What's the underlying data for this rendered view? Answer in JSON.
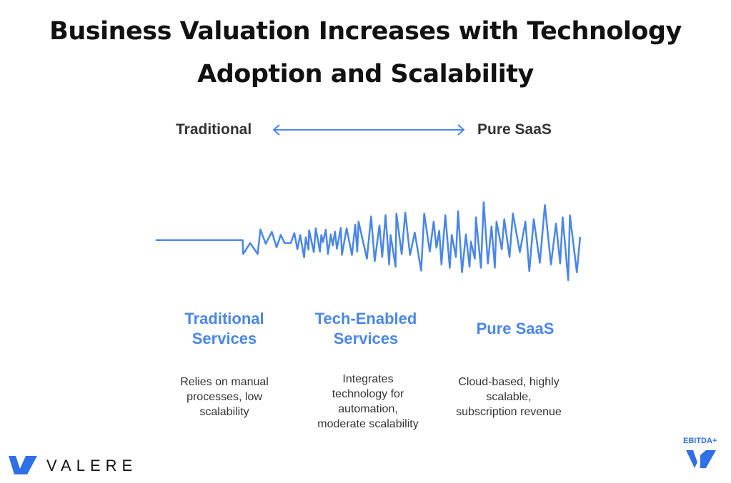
{
  "title_line1": "Business Valuation Increases with Technology",
  "title_line2": "Adoption and Scalability",
  "spectrum": {
    "left": "Traditional",
    "right": "Pure SaaS",
    "arrow_icon": "double-arrow-icon"
  },
  "accent_color": "#4a86e8",
  "categories": [
    {
      "name_line1": "Traditional",
      "name_line2": "Services",
      "desc": [
        "Relies on manual",
        "processes, low",
        "scalability"
      ]
    },
    {
      "name_line1": "Tech-Enabled",
      "name_line2": "Services",
      "desc": [
        "Integrates",
        "technology for",
        "automation,",
        "moderate scalability"
      ]
    },
    {
      "name_line1": "Pure SaaS",
      "name_line2": "",
      "desc": [
        "Cloud-based, highly",
        "scalable,",
        "subscription revenue"
      ]
    }
  ],
  "logos": {
    "valere": "VALERE",
    "ebitda": "EBITDA+"
  }
}
